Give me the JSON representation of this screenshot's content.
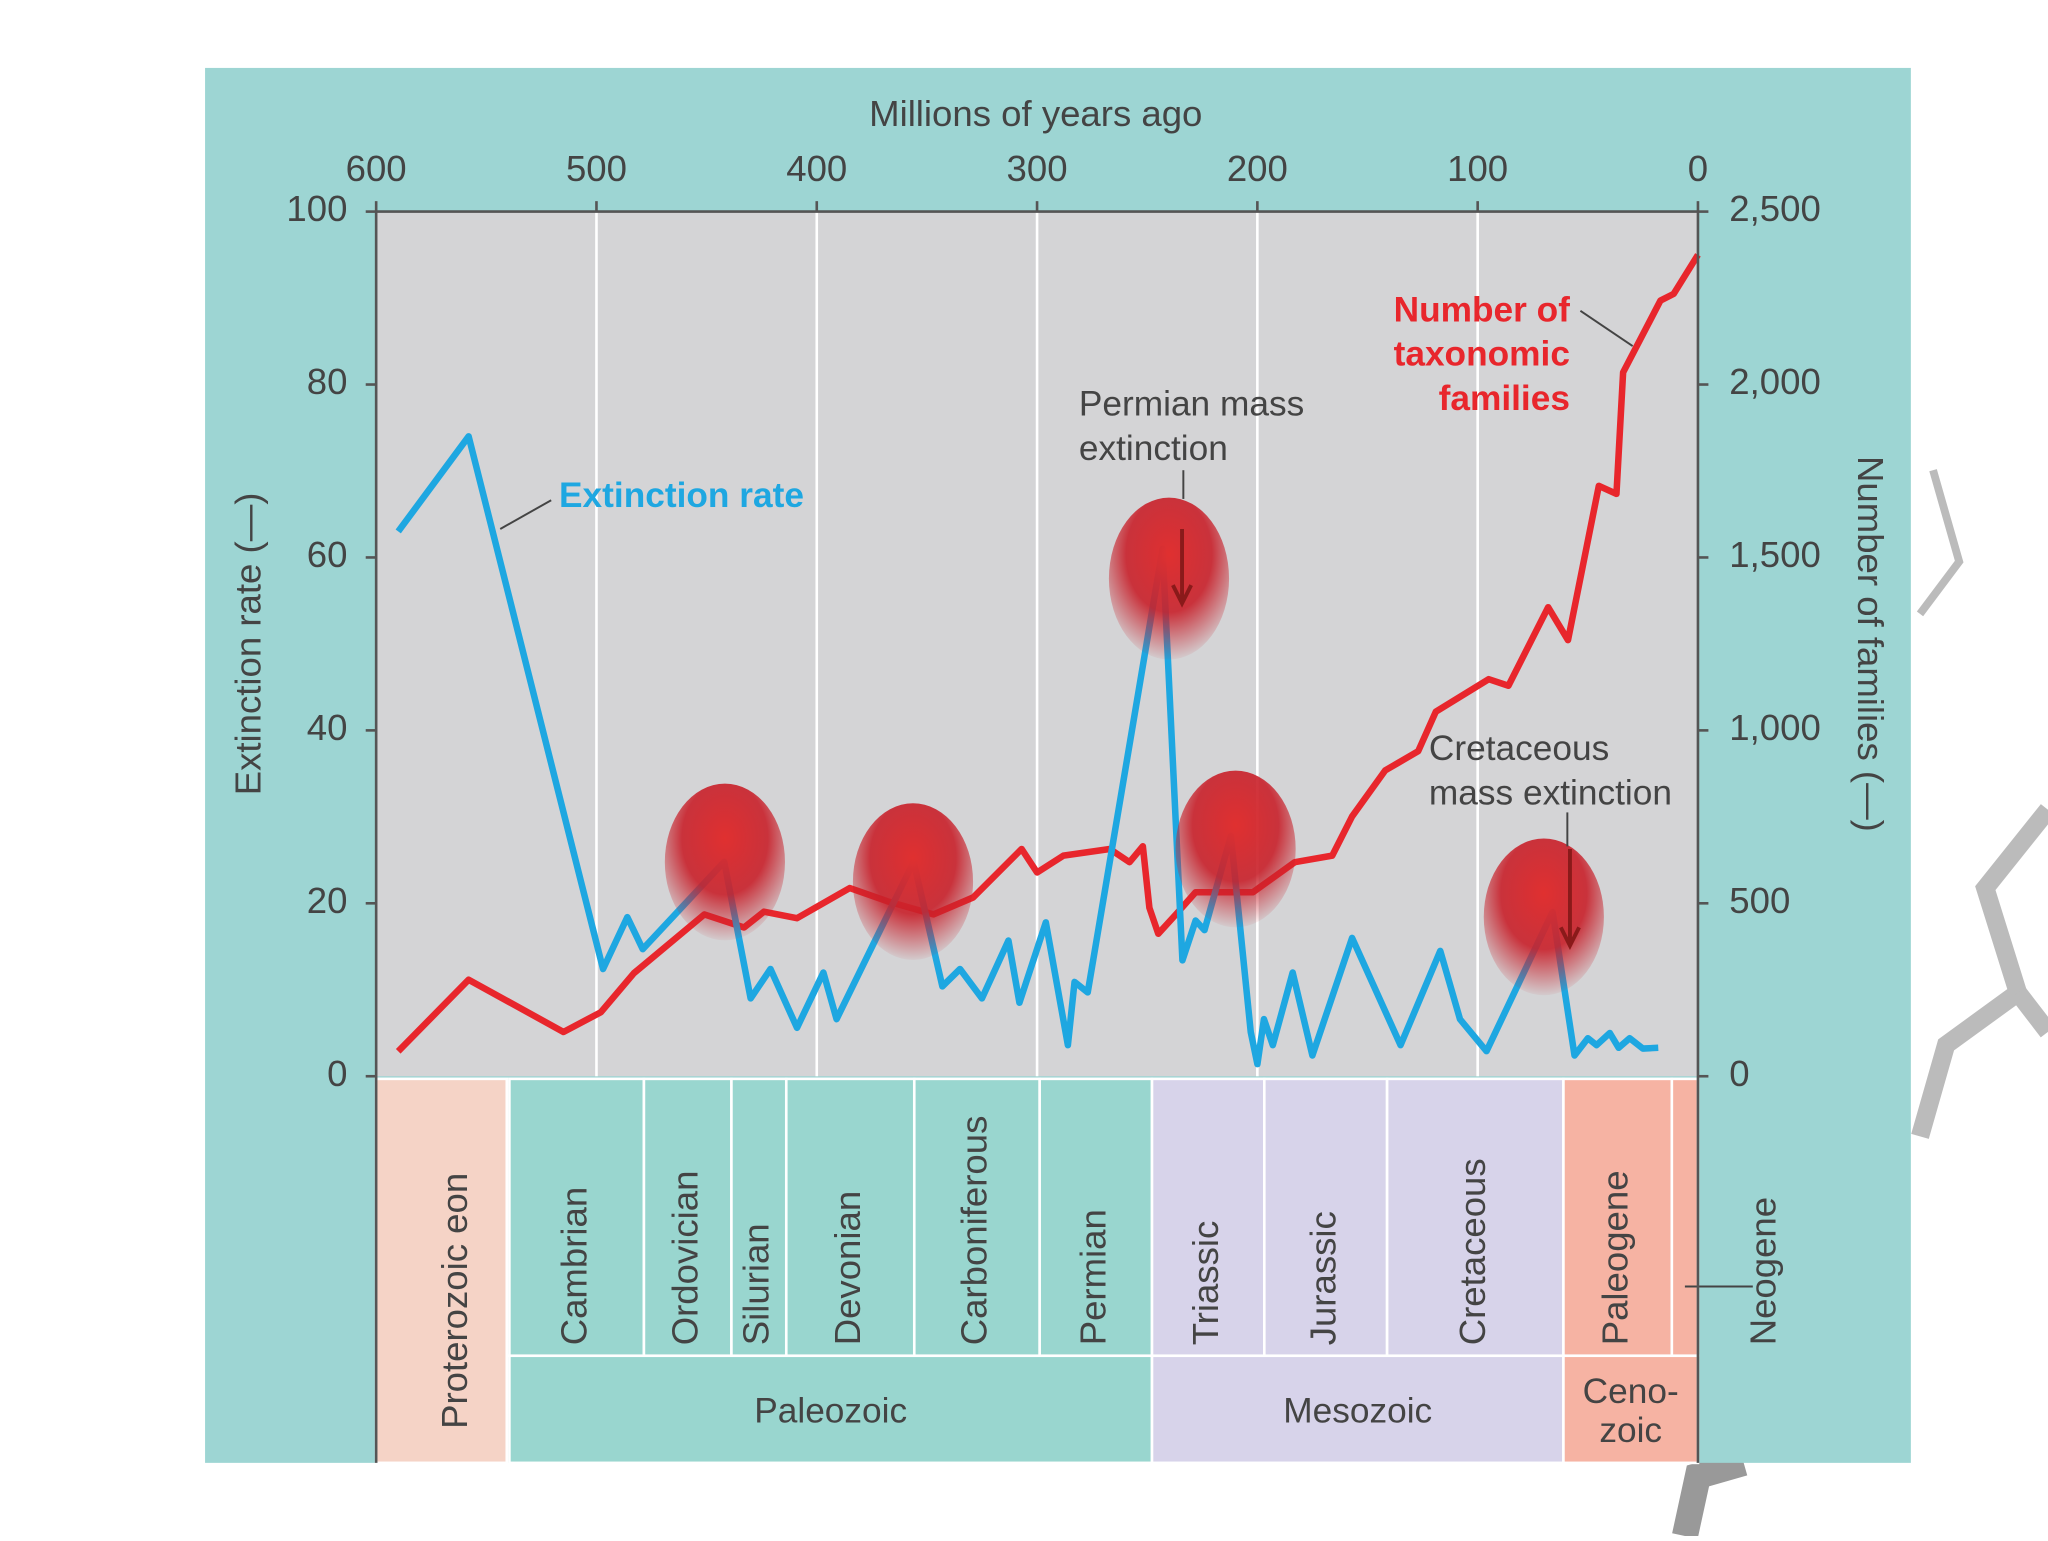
{
  "chart_data": {
    "type": "line",
    "x_label": "Millions of years ago",
    "y_label": "Extinction rate (—)",
    "y2_label": "Number of families (—)",
    "xlim": [
      600,
      0
    ],
    "xticks": [
      600,
      500,
      400,
      300,
      200,
      100,
      0
    ],
    "ylim": [
      0,
      100
    ],
    "yticks": [
      0,
      20,
      40,
      60,
      80,
      100
    ],
    "y2lim": [
      0,
      2500
    ],
    "y2ticks": [
      0,
      500,
      {
        "value": 1000,
        "label": "1,000"
      },
      {
        "value": 1500,
        "label": "1,500"
      },
      {
        "value": 2000,
        "label": "2,000"
      },
      {
        "value": 2500,
        "label": "2,500"
      }
    ],
    "grid": true,
    "series": [
      {
        "name": "Extinction rate",
        "color": "#1ea7e1",
        "x": [
          590,
          558,
          497,
          486,
          479,
          442,
          430,
          421,
          409,
          397,
          391,
          356,
          343,
          335,
          325,
          313,
          308,
          296,
          286,
          283,
          277,
          243,
          234,
          228,
          224,
          212,
          203,
          200,
          197,
          193,
          184,
          175,
          157,
          135,
          117,
          108,
          96,
          66,
          56,
          50,
          46,
          40,
          36,
          31,
          25,
          18
        ],
        "values": [
          63,
          74,
          12.4,
          18.4,
          14.7,
          24.8,
          9,
          12.4,
          5.6,
          12,
          6.6,
          24.8,
          10.4,
          12.4,
          9,
          15.7,
          8.5,
          17.8,
          3.6,
          10.9,
          9.7,
          61,
          13.4,
          18,
          16.9,
          27.8,
          5.1,
          1.4,
          6.6,
          3.6,
          12,
          2.4,
          16,
          3.6,
          14.5,
          6.6,
          2.9,
          19,
          2.4,
          4.4,
          3.6,
          5,
          3.3,
          4.4,
          3.2,
          3.3
        ]
      },
      {
        "name": "Number of taxonomic families",
        "color": "#e8262c",
        "axis": "y2",
        "x": [
          590,
          558,
          515,
          498,
          483,
          451,
          433,
          424,
          409,
          385,
          368,
          347,
          329,
          307,
          300,
          288,
          267,
          258,
          252,
          249,
          245,
          237,
          228,
          202,
          183,
          166,
          157,
          142,
          127,
          119,
          95,
          86,
          68,
          59,
          45,
          37,
          34,
          17,
          11,
          0
        ],
        "values": [
          72,
          279,
          128,
          185,
          298,
          468,
          430,
          476,
          457,
          544,
          506,
          468,
          517,
          657,
          589,
          638,
          657,
          619,
          665,
          487,
          412,
          468,
          532,
          532,
          619,
          638,
          751,
          884,
          940,
          1054,
          1148,
          1129,
          1356,
          1261,
          1707,
          1684,
          2035,
          2243,
          2262,
          2375
        ]
      }
    ],
    "annotations": [
      "Permian mass extinction",
      "Cretaceous mass extinction"
    ]
  },
  "timescale": {
    "eon": "Proterozoic eon",
    "periods": [
      "Cambrian",
      "Ordovician",
      "Silurian",
      "Devonian",
      "Carboniferous",
      "Permian",
      "Triassic",
      "Jurassic",
      "Cretaceous",
      "Paleogene",
      "Neogene"
    ],
    "eras": [
      "Paleozoic",
      "Mesozoic",
      "Ceno-zoic"
    ]
  }
}
